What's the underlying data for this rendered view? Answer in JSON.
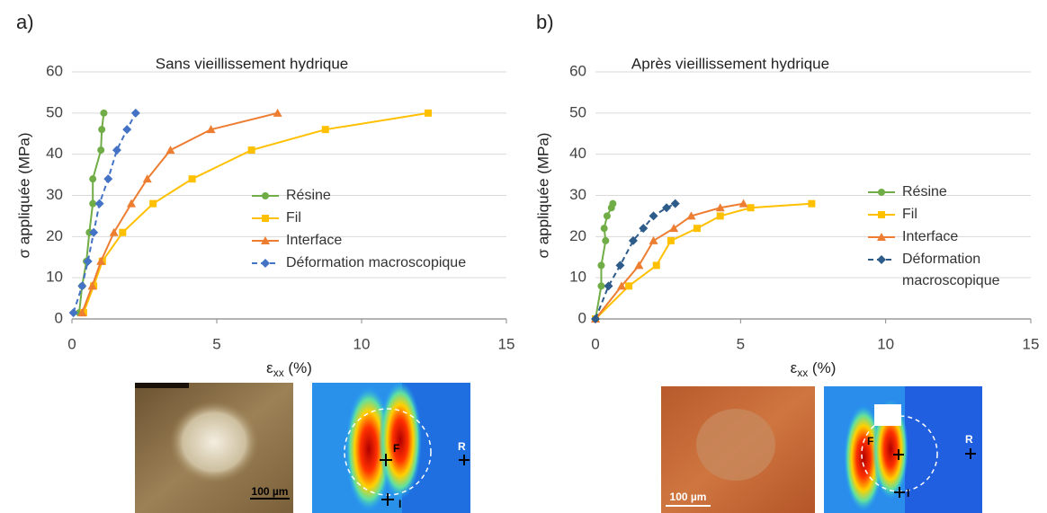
{
  "panel_labels": [
    "a)",
    "b)"
  ],
  "chart_data": [
    {
      "type": "line",
      "title": "Sans vieillissement hydrique",
      "y_label": "σ appliquée (MPa)",
      "x_label": {
        "symbol": "ε",
        "subscript": "xx",
        "unit": " (%)"
      },
      "xlim": [
        0,
        15
      ],
      "xticks": [
        0,
        5,
        10,
        15
      ],
      "ylim": [
        0,
        60
      ],
      "yticks": [
        0,
        10,
        20,
        30,
        40,
        50,
        60
      ],
      "grid": true,
      "series": [
        {
          "name": "Résine",
          "color": "#70ad47",
          "marker": "circle",
          "dashed": false,
          "x": [
            0.25,
            0.35,
            0.5,
            0.6,
            0.72,
            0.72,
            1.0,
            1.03,
            1.1
          ],
          "values": [
            1.5,
            8,
            14,
            21,
            28,
            34,
            41,
            46,
            50
          ]
        },
        {
          "name": "Fil",
          "color": "#ffc000",
          "marker": "square",
          "dashed": false,
          "x": [
            0.4,
            0.75,
            1.05,
            1.75,
            2.8,
            4.15,
            6.2,
            8.75,
            12.3
          ],
          "values": [
            1.5,
            8,
            14,
            21,
            28,
            34,
            41,
            46,
            50
          ]
        },
        {
          "name": "Interface",
          "color": "#ed7d31",
          "marker": "triangle",
          "dashed": false,
          "x": [
            0.35,
            0.7,
            1.0,
            1.45,
            2.05,
            2.6,
            3.4,
            4.8,
            7.1
          ],
          "values": [
            1.5,
            8,
            14,
            21,
            28,
            34,
            41,
            46,
            50
          ]
        },
        {
          "name": "Déformation macroscopique",
          "color": "#4472c4",
          "marker": "diamond",
          "dashed": true,
          "x": [
            0.05,
            0.35,
            0.55,
            0.75,
            0.95,
            1.25,
            1.55,
            1.9,
            2.2
          ],
          "values": [
            1.5,
            8,
            14,
            21,
            28,
            34,
            41,
            46,
            50
          ]
        }
      ]
    },
    {
      "type": "line",
      "title": "Après vieillissement hydrique",
      "y_label": "σ appliquée (MPa)",
      "x_label": {
        "symbol": "ε",
        "subscript": "xx",
        "unit": " (%)"
      },
      "xlim": [
        0,
        15
      ],
      "xticks": [
        0,
        5,
        10,
        15
      ],
      "ylim": [
        0,
        60
      ],
      "yticks": [
        0,
        10,
        20,
        30,
        40,
        50,
        60
      ],
      "grid": true,
      "series": [
        {
          "name": "Résine",
          "color": "#70ad47",
          "marker": "circle",
          "dashed": false,
          "x": [
            0,
            0.2,
            0.2,
            0.35,
            0.3,
            0.4,
            0.55,
            0.6
          ],
          "values": [
            0,
            8,
            13,
            19,
            22,
            25,
            27,
            28
          ]
        },
        {
          "name": "Fil",
          "color": "#ffc000",
          "marker": "square",
          "dashed": false,
          "x": [
            0,
            1.15,
            2.1,
            2.6,
            3.5,
            4.3,
            5.35,
            7.45
          ],
          "values": [
            0,
            8,
            13,
            19,
            22,
            25,
            27,
            28
          ]
        },
        {
          "name": "Interface",
          "color": "#ed7d31",
          "marker": "triangle",
          "dashed": false,
          "x": [
            0,
            0.9,
            1.5,
            2.0,
            2.7,
            3.3,
            4.3,
            5.1
          ],
          "values": [
            0,
            8,
            13,
            19,
            22,
            25,
            27,
            28
          ]
        },
        {
          "name": "Déformation macroscopique",
          "color": "#2e5c8a",
          "marker": "diamond",
          "dashed": true,
          "x": [
            0,
            0.45,
            0.85,
            1.3,
            1.65,
            2.0,
            2.45,
            2.75
          ],
          "values": [
            0,
            8,
            13,
            19,
            22,
            25,
            27,
            28
          ]
        }
      ]
    }
  ],
  "images": [
    {
      "scale_bar": "100 µm",
      "markers": [
        "F",
        "I",
        "R"
      ]
    },
    {
      "scale_bar": "100 µm",
      "markers": [
        "F",
        "I",
        "R"
      ]
    }
  ]
}
